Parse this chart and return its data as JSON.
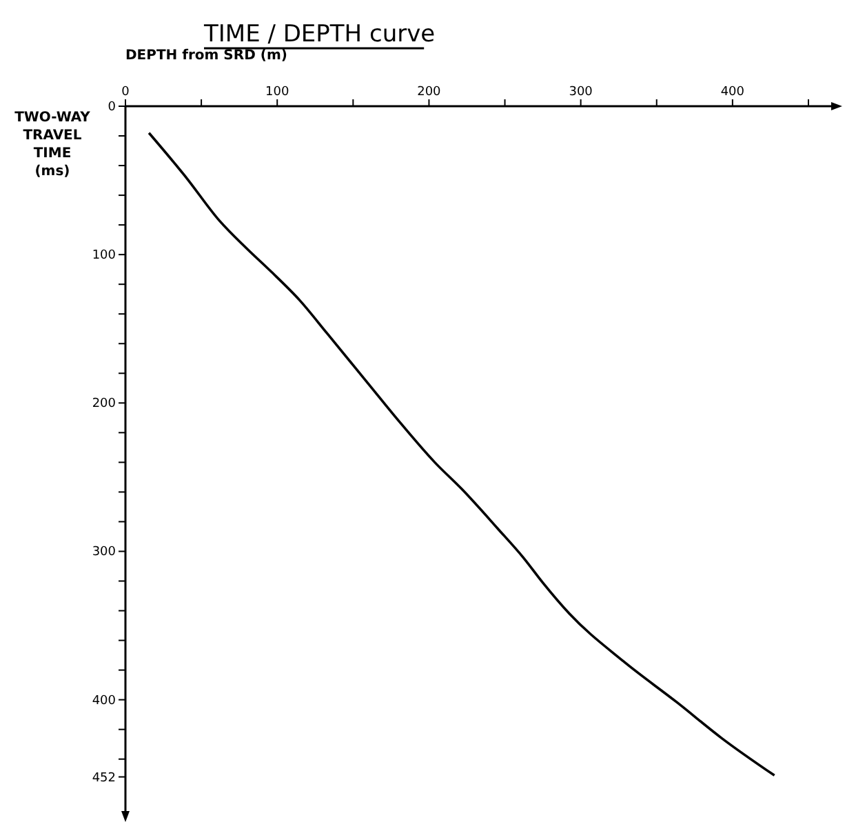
{
  "chart_data": {
    "type": "line",
    "title": "TIME / DEPTH  curve",
    "xlabel": "DEPTH  from  SRD     (m)",
    "ylabel": "TWO-WAY\nTRAVEL\nTIME\n(ms)",
    "x": [
      15.5,
      40,
      61.8,
      80,
      95.5,
      115,
      132.8,
      160,
      180,
      203.8,
      221.6,
      245.6,
      262,
      274.9,
      292.5,
      328,
      363.7,
      393,
      427.6
    ],
    "series": [
      {
        "color": "#000000",
        "values": [
          18,
          48,
          77,
          96,
          111,
          131,
          153,
          187,
          212,
          240,
          258,
          285,
          304,
          321,
          342,
          374,
          402,
          426,
          451
        ]
      }
    ],
    "xlim": [
      0,
      465
    ],
    "xticks": [
      0,
      {
        "value": 50,
        "label": null
      },
      100,
      {
        "value": 150,
        "label": null
      },
      200,
      {
        "value": 250,
        "label": null
      },
      300,
      {
        "value": 350,
        "label": null
      },
      400,
      {
        "value": 450,
        "label": null
      }
    ],
    "ylim": [
      475,
      0
    ],
    "yticks": [
      0,
      {
        "value": 20,
        "label": null
      },
      {
        "value": 40,
        "label": null
      },
      {
        "value": 60,
        "label": null
      },
      {
        "value": 80,
        "label": null
      },
      100,
      {
        "value": 120,
        "label": null
      },
      {
        "value": 140,
        "label": null
      },
      {
        "value": 160,
        "label": null
      },
      {
        "value": 180,
        "label": null
      },
      200,
      {
        "value": 220,
        "label": null
      },
      {
        "value": 240,
        "label": null
      },
      {
        "value": 260,
        "label": null
      },
      {
        "value": 280,
        "label": null
      },
      300,
      {
        "value": 320,
        "label": null
      },
      {
        "value": 340,
        "label": null
      },
      {
        "value": 360,
        "label": null
      },
      {
        "value": 380,
        "label": null
      },
      400,
      {
        "value": 420,
        "label": null
      },
      {
        "value": 440,
        "label": null
      },
      452
    ],
    "marker": "none",
    "line_style": "solid"
  }
}
